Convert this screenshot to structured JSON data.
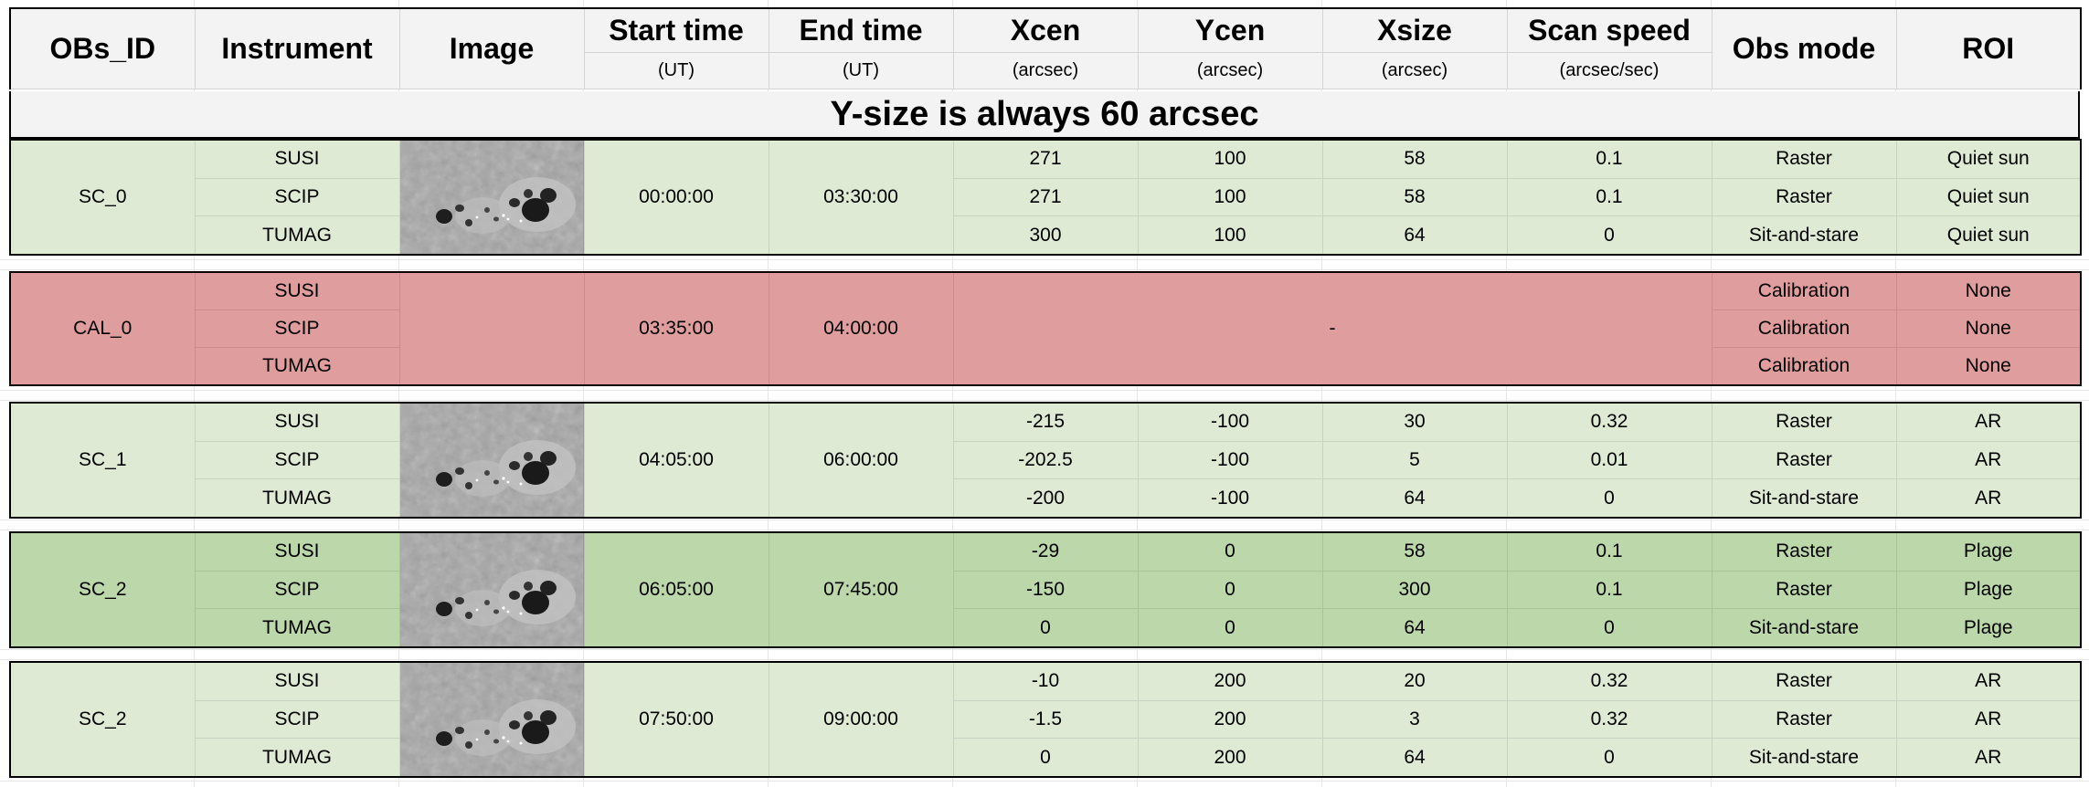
{
  "header": {
    "obs_id": "OBs_ID",
    "instrument": "Instrument",
    "image": "Image",
    "start_time": "Start time",
    "start_time_unit": "(UT)",
    "end_time": "End time",
    "end_time_unit": "(UT)",
    "xcen": "Xcen",
    "xcen_unit": "(arcsec)",
    "ycen": "Ycen",
    "ycen_unit": "(arcsec)",
    "xsize": "Xsize",
    "xsize_unit": "(arcsec)",
    "scan_speed": "Scan speed",
    "scan_speed_unit": "(arcsec/sec)",
    "obs_mode": "Obs mode",
    "roi": "ROI"
  },
  "banner": "Y-size is always 60 arcsec",
  "blocks": [
    {
      "id": "SC_0",
      "start": "00:00:00",
      "end": "03:30:00",
      "rows": [
        {
          "instrument": "SUSI",
          "xcen": "271",
          "ycen": "100",
          "xsize": "58",
          "speed": "0.1",
          "mode": "Raster",
          "roi": "Quiet sun"
        },
        {
          "instrument": "SCIP",
          "xcen": "271",
          "ycen": "100",
          "xsize": "58",
          "speed": "0.1",
          "mode": "Raster",
          "roi": "Quiet sun"
        },
        {
          "instrument": "TUMAG",
          "xcen": "300",
          "ycen": "100",
          "xsize": "64",
          "speed": "0",
          "mode": "Sit-and-stare",
          "roi": "Quiet sun"
        }
      ]
    },
    {
      "id": "CAL_0",
      "start": "03:35:00",
      "end": "04:00:00",
      "dash": "-",
      "rows": [
        {
          "instrument": "SUSI",
          "mode": "Calibration",
          "roi": "None"
        },
        {
          "instrument": "SCIP",
          "mode": "Calibration",
          "roi": "None"
        },
        {
          "instrument": "TUMAG",
          "mode": "Calibration",
          "roi": "None"
        }
      ]
    },
    {
      "id": "SC_1",
      "start": "04:05:00",
      "end": "06:00:00",
      "rows": [
        {
          "instrument": "SUSI",
          "xcen": "-215",
          "ycen": "-100",
          "xsize": "30",
          "speed": "0.32",
          "mode": "Raster",
          "roi": "AR"
        },
        {
          "instrument": "SCIP",
          "xcen": "-202.5",
          "ycen": "-100",
          "xsize": "5",
          "speed": "0.01",
          "mode": "Raster",
          "roi": "AR"
        },
        {
          "instrument": "TUMAG",
          "xcen": "-200",
          "ycen": "-100",
          "xsize": "64",
          "speed": "0",
          "mode": "Sit-and-stare",
          "roi": "AR"
        }
      ]
    },
    {
      "id": "SC_2",
      "start": "06:05:00",
      "end": "07:45:00",
      "rows": [
        {
          "instrument": "SUSI",
          "xcen": "-29",
          "ycen": "0",
          "xsize": "58",
          "speed": "0.1",
          "mode": "Raster",
          "roi": "Plage"
        },
        {
          "instrument": "SCIP",
          "xcen": "-150",
          "ycen": "0",
          "xsize": "300",
          "speed": "0.1",
          "mode": "Raster",
          "roi": "Plage"
        },
        {
          "instrument": "TUMAG",
          "xcen": "0",
          "ycen": "0",
          "xsize": "64",
          "speed": "0",
          "mode": "Sit-and-stare",
          "roi": "Plage"
        }
      ]
    },
    {
      "id": "SC_2",
      "start": "07:50:00",
      "end": "09:00:00",
      "rows": [
        {
          "instrument": "SUSI",
          "xcen": "-10",
          "ycen": "200",
          "xsize": "20",
          "speed": "0.32",
          "mode": "Raster",
          "roi": "AR"
        },
        {
          "instrument": "SCIP",
          "xcen": "-1.5",
          "ycen": "200",
          "xsize": "3",
          "speed": "0.32",
          "mode": "Raster",
          "roi": "AR"
        },
        {
          "instrument": "TUMAG",
          "xcen": "0",
          "ycen": "200",
          "xsize": "64",
          "speed": "0",
          "mode": "Sit-and-stare",
          "roi": "AR"
        }
      ]
    }
  ],
  "colors": {
    "green_light": "#deead4",
    "green_dark": "#bcd8aa",
    "red": "#e09d9d",
    "header_bg": "#f3f3f3"
  },
  "icons": {
    "thumbnail": "sunspot-image"
  }
}
